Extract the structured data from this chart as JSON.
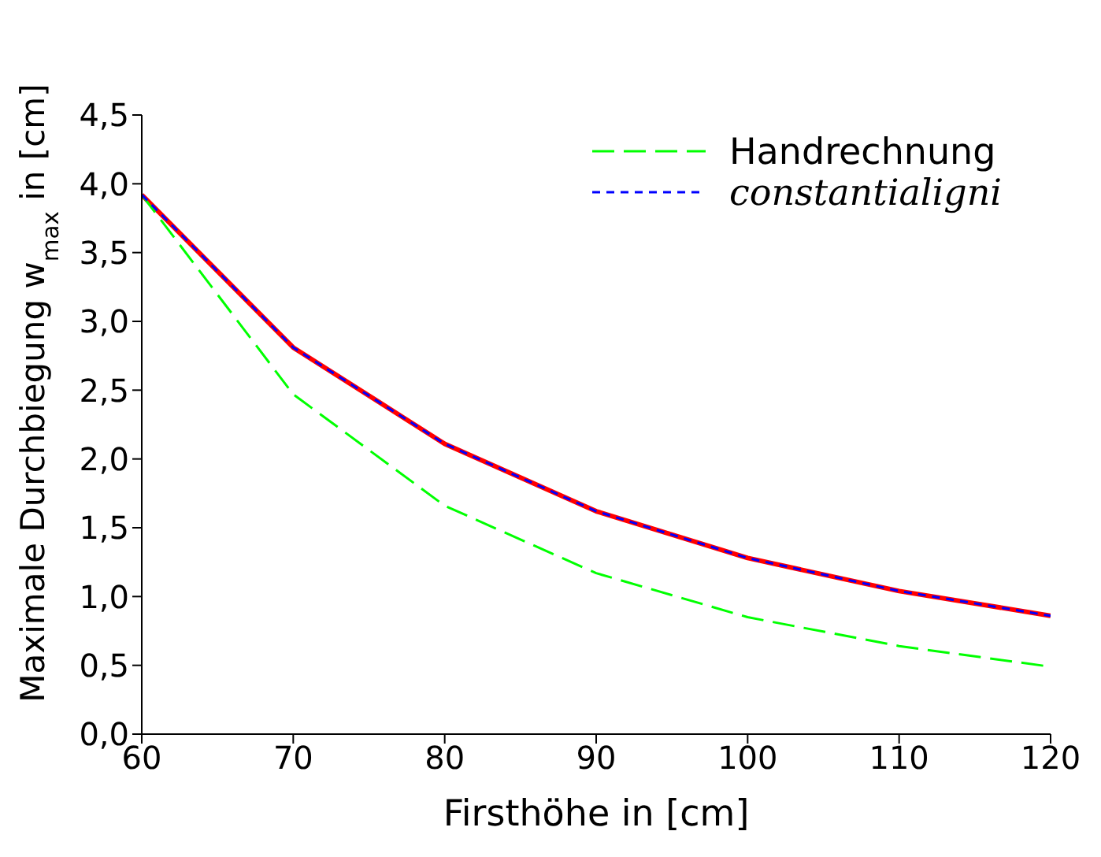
{
  "chart_data": {
    "type": "line",
    "xlabel": "Firsthöhe in [cm]",
    "ylabel": "Maximale Durchbiegung w$_{max}$ in [cm]",
    "x": [
      60,
      70,
      80,
      90,
      100,
      110,
      120
    ],
    "series": [
      {
        "color": "#ff0000",
        "line_style": "solid",
        "values": [
          3.92,
          2.81,
          2.11,
          1.62,
          1.28,
          1.04,
          0.86
        ]
      },
      {
        "name": "Handrechnung",
        "color": "#00ff00",
        "line_style": "dashed",
        "values": [
          3.92,
          2.47,
          1.66,
          1.17,
          0.85,
          0.64,
          0.49
        ]
      },
      {
        "name": "constantialigni",
        "color": "#0000ff",
        "line_style": "dotted",
        "values": [
          3.92,
          2.81,
          2.11,
          1.62,
          1.28,
          1.04,
          0.86
        ]
      }
    ],
    "xlim": [
      60,
      120
    ],
    "xticks": [
      60,
      70,
      80,
      90,
      100,
      110,
      120
    ],
    "ylim": [
      0,
      4.5
    ],
    "yticks": [
      {
        "value": 0,
        "label": "0,0"
      },
      {
        "value": 0.5,
        "label": "0,5"
      },
      {
        "value": 1,
        "label": "1,0"
      },
      {
        "value": 1.5,
        "label": "1,5"
      },
      {
        "value": 2,
        "label": "2,0"
      },
      {
        "value": 2.5,
        "label": "2,5"
      },
      {
        "value": 3,
        "label": "3,0"
      },
      {
        "value": 3.5,
        "label": "3,5"
      },
      {
        "value": 4,
        "label": "4,0"
      },
      {
        "value": 4.5,
        "label": "4,5"
      }
    ],
    "grid": false,
    "legend": "top right",
    "marker": "none"
  }
}
